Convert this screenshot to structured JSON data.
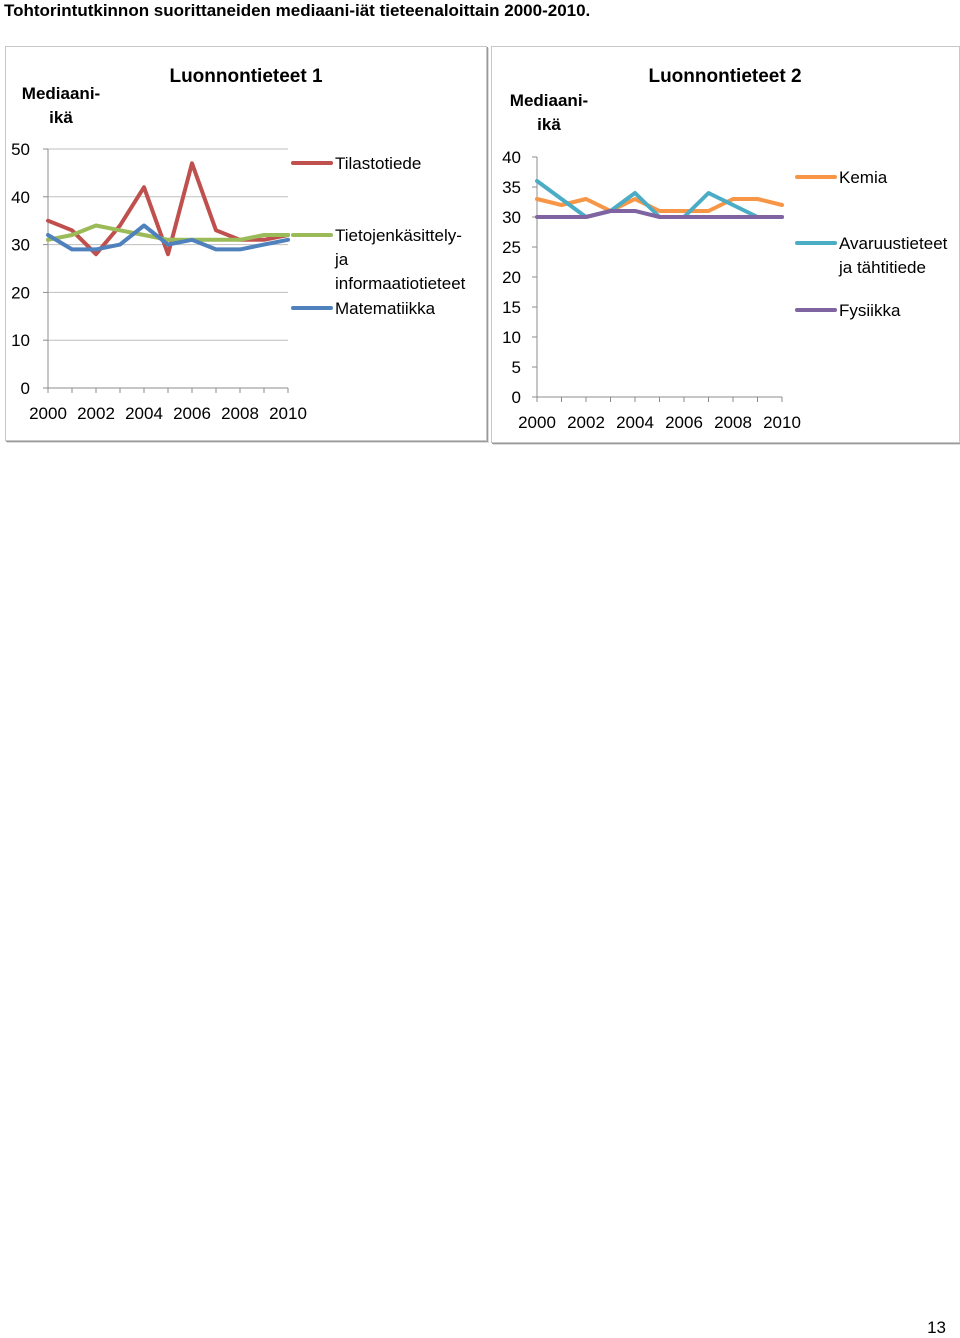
{
  "page": {
    "title": "Tohtorintutkinnon suorittaneiden mediaani-iät tieteenaloittain 2000-2010.",
    "page_number": "13"
  },
  "chart_data": [
    {
      "type": "line",
      "title": "Luonnontieteet 1",
      "ylabel_lines": [
        "Mediaani-",
        "ikä"
      ],
      "xlabel": "",
      "x": [
        2000,
        2001,
        2002,
        2003,
        2004,
        2005,
        2006,
        2007,
        2008,
        2009,
        2010
      ],
      "x_tick_labels": [
        "2000",
        "2002",
        "2004",
        "2006",
        "2008",
        "2010"
      ],
      "x_tick_values": [
        2000,
        2002,
        2004,
        2006,
        2008,
        2010
      ],
      "ylim": [
        0,
        50
      ],
      "y_ticks": [
        0,
        10,
        20,
        30,
        40,
        50
      ],
      "grid": "horizontal",
      "legend": "right",
      "series": [
        {
          "name": "Tilastotiede",
          "legend_lines": [
            "Tilastotiede"
          ],
          "color": "#c0504d",
          "values": [
            35,
            33,
            28,
            34,
            42,
            28,
            47,
            33,
            31,
            31,
            32
          ]
        },
        {
          "name": "Tietojenkäsittely- ja informaatiotieteet",
          "legend_lines": [
            "Tietojenkäsittely-",
            "ja",
            "informaatiotieteet"
          ],
          "color": "#9bbb59",
          "values": [
            31,
            32,
            34,
            33,
            32,
            31,
            31,
            31,
            31,
            32,
            32
          ]
        },
        {
          "name": "Matematiikka",
          "legend_lines": [
            "Matematiikka"
          ],
          "color": "#4f81bd",
          "values": [
            32,
            29,
            29,
            30,
            34,
            30,
            31,
            29,
            29,
            30,
            31
          ]
        }
      ]
    },
    {
      "type": "line",
      "title": "Luonnontieteet 2",
      "ylabel_lines": [
        "Mediaani-",
        "ikä"
      ],
      "xlabel": "",
      "x": [
        2000,
        2001,
        2002,
        2003,
        2004,
        2005,
        2006,
        2007,
        2008,
        2009,
        2010
      ],
      "x_tick_labels": [
        "2000",
        "2002",
        "2004",
        "2006",
        "2008",
        "2010"
      ],
      "x_tick_values": [
        2000,
        2002,
        2004,
        2006,
        2008,
        2010
      ],
      "ylim": [
        0,
        40
      ],
      "y_ticks": [
        0,
        5,
        10,
        15,
        20,
        25,
        30,
        35,
        40
      ],
      "grid": "none",
      "legend": "right",
      "series": [
        {
          "name": "Kemia",
          "legend_lines": [
            "Kemia"
          ],
          "color": "#f79646",
          "values": [
            33,
            32,
            33,
            31,
            33,
            31,
            31,
            31,
            33,
            33,
            32
          ]
        },
        {
          "name": "Avaruustieteet ja tähtitiede",
          "legend_lines": [
            "Avaruustieteet",
            "ja tähtitiede"
          ],
          "color": "#4bacc6",
          "values": [
            36,
            33,
            30,
            31,
            34,
            30,
            30,
            34,
            32,
            30,
            30
          ]
        },
        {
          "name": "Fysiikka",
          "legend_lines": [
            "Fysiikka"
          ],
          "color": "#8064a2",
          "values": [
            30,
            30,
            30,
            31,
            31,
            30,
            30,
            30,
            30,
            30,
            30
          ]
        }
      ]
    }
  ]
}
